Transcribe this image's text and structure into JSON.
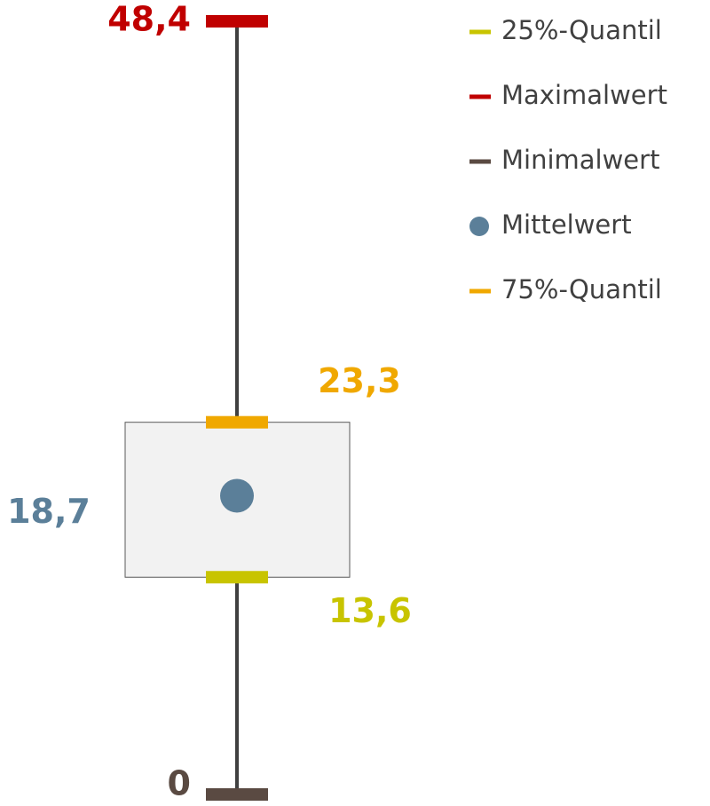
{
  "chart_data": {
    "type": "box",
    "series": [
      {
        "name": "25%-Quantil",
        "stat": "q1",
        "marker": "dash",
        "color": "#c8c400",
        "values": [
          13.6
        ],
        "value_labels": [
          "13,6"
        ]
      },
      {
        "name": "Maximalwert",
        "stat": "max",
        "marker": "dash",
        "color": "#c00000",
        "values": [
          48.4
        ],
        "value_labels": [
          "48,4"
        ]
      },
      {
        "name": "Minimalwert",
        "stat": "min",
        "marker": "dash",
        "color": "#5a4a42",
        "values": [
          0
        ],
        "value_labels": [
          "0"
        ]
      },
      {
        "name": "Mittelwert",
        "stat": "mean",
        "marker": "circle",
        "color": "#5b7f99",
        "values": [
          18.7
        ],
        "value_labels": [
          "18,7"
        ]
      },
      {
        "name": "75%-Quantil",
        "stat": "q3",
        "marker": "dash",
        "color": "#f0a800",
        "values": [
          23.3
        ],
        "value_labels": [
          "23,3"
        ]
      }
    ]
  }
}
